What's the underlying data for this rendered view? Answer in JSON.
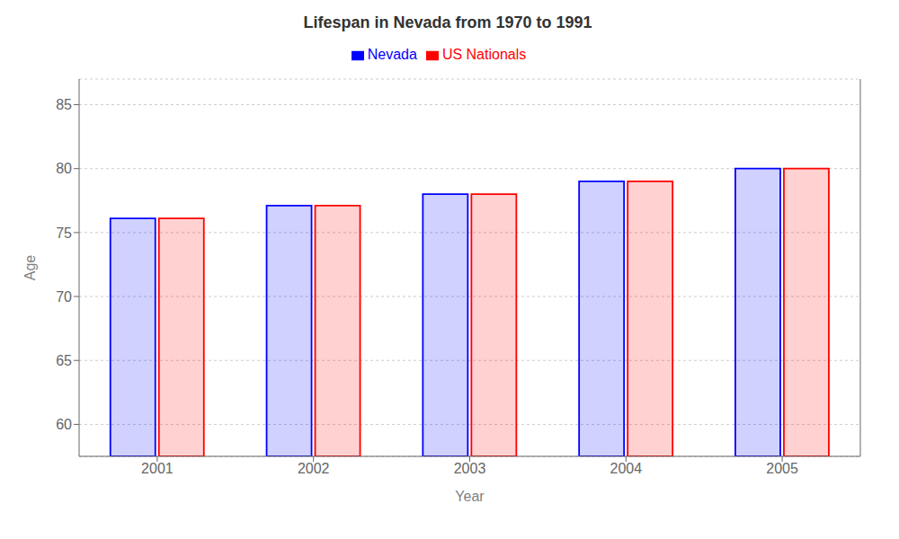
{
  "chart_data": {
    "type": "bar",
    "title": "Lifespan in Nevada from 1970 to 1991",
    "xlabel": "Year",
    "ylabel": "Age",
    "categories": [
      "2001",
      "2002",
      "2003",
      "2004",
      "2005"
    ],
    "series": [
      {
        "name": "Nevada",
        "color": "#0000ff",
        "values": [
          76.1,
          77.1,
          78.0,
          79.0,
          80.0
        ]
      },
      {
        "name": "US Nationals",
        "color": "#ff0000",
        "values": [
          76.1,
          77.1,
          78.0,
          79.0,
          80.0
        ]
      }
    ],
    "ylim": [
      57.5,
      87
    ],
    "yticks": [
      60,
      65,
      70,
      75,
      80,
      85
    ],
    "grid": true,
    "legend": "top"
  }
}
